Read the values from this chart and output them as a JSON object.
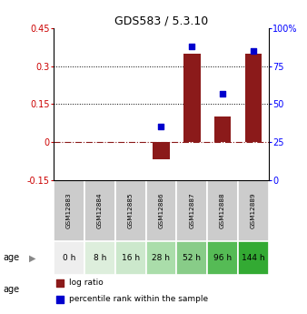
{
  "title": "GDS583 / 5.3.10",
  "categories": [
    "GSM12883",
    "GSM12884",
    "GSM12885",
    "GSM12886",
    "GSM12887",
    "GSM12888",
    "GSM12889"
  ],
  "age_labels": [
    "0 h",
    "8 h",
    "16 h",
    "28 h",
    "52 h",
    "96 h",
    "144 h"
  ],
  "log_ratio": [
    0.0,
    0.0,
    0.0,
    -0.07,
    0.35,
    0.1,
    0.35
  ],
  "percentile_rank": [
    null,
    null,
    null,
    35.0,
    88.0,
    57.0,
    85.0
  ],
  "bar_color": "#8B1A1A",
  "dot_color": "#0000CD",
  "ylim_left": [
    -0.15,
    0.45
  ],
  "ylim_right": [
    0,
    100
  ],
  "yticks_left": [
    -0.15,
    0.0,
    0.15,
    0.3,
    0.45
  ],
  "ytick_labels_left": [
    "-0.15",
    "0",
    "0.15",
    "0.3",
    "0.45"
  ],
  "yticks_right": [
    0,
    25,
    50,
    75,
    100
  ],
  "ytick_labels_right": [
    "0",
    "25",
    "50",
    "75",
    "100%"
  ],
  "hlines_dotted": [
    0.15,
    0.3
  ],
  "zero_line_color": "#8B1A1A",
  "gsm_bg_color": "#cccccc",
  "age_bg_colors": [
    "#eeeeee",
    "#ddeedc",
    "#cce8cc",
    "#aaddaa",
    "#88cc88",
    "#55bb55",
    "#33aa33"
  ],
  "legend_items": [
    {
      "label": "log ratio",
      "color": "#8B1A1A"
    },
    {
      "label": "percentile rank within the sample",
      "color": "#0000CD"
    }
  ]
}
